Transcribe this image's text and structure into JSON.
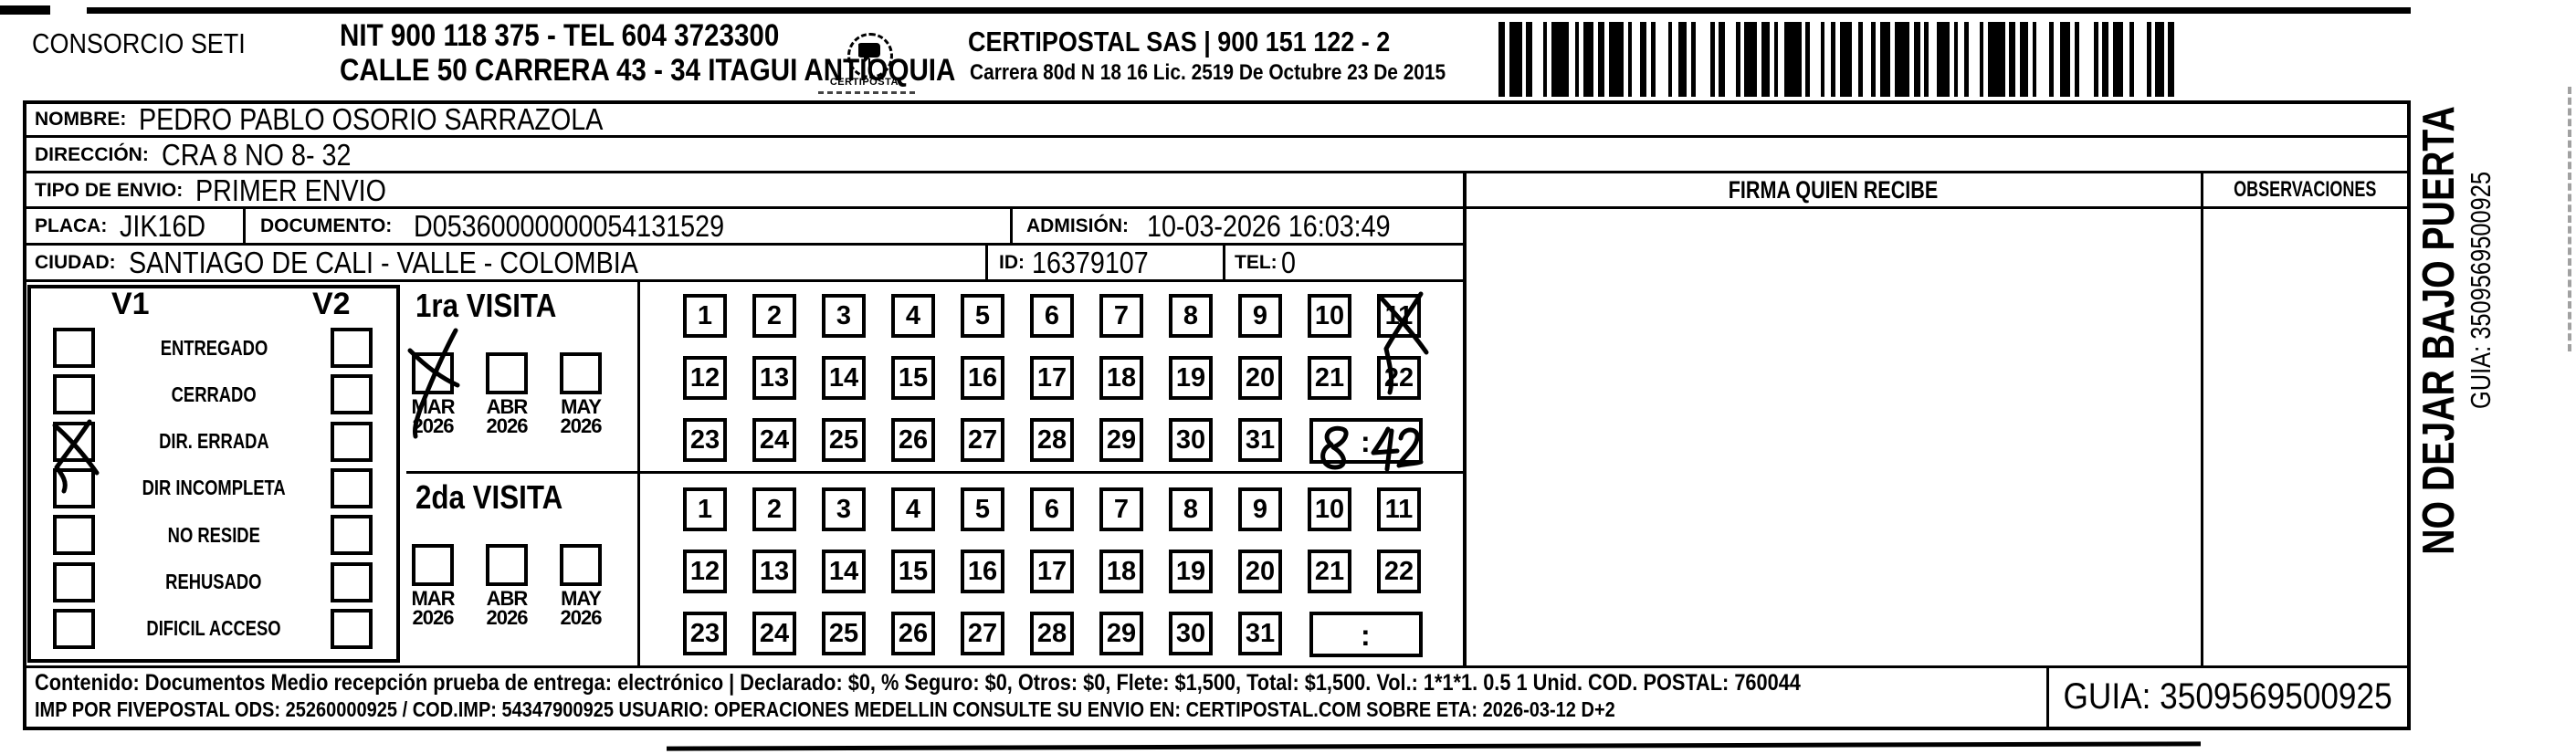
{
  "header": {
    "consorcio": "CONSORCIO SETI",
    "nit_line": "NIT 900 118 375 - TEL 604 3723300",
    "address_line": "CALLE 50 CARRERA 43 - 34 ITAGUI ANTIOQUIA",
    "logo_text": "CERTIPOSTAL",
    "company_line": "CERTIPOSTAL SAS | 900 151 122 - 2",
    "company_address_line": "Carrera 80d N 18 16  Lic. 2519 De Octubre 23 De 2015"
  },
  "recipient": {
    "nombre_label": "NOMBRE:",
    "nombre": "PEDRO PABLO OSORIO SARRAZOLA",
    "direccion_label": "DIRECCIÓN:",
    "direccion": "CRA 8 NO 8- 32",
    "tipo_label": "TIPO DE ENVIO:",
    "tipo": "PRIMER ENVIO",
    "placa_label": "PLACA:",
    "placa": "JIK16D",
    "documento_label": "DOCUMENTO:",
    "documento": "D05360000000054131529",
    "admision_label": "ADMISIÓN:",
    "admision": "10-03-2026 16:03:49",
    "ciudad_label": "CIUDAD:",
    "ciudad": "SANTIAGO DE CALI - VALLE - COLOMBIA",
    "id_label": "ID:",
    "id": "16379107",
    "tel_label": "TEL:",
    "tel": "0"
  },
  "status": {
    "v1_label": "V1",
    "v2_label": "V2",
    "options": [
      "ENTREGADO",
      "CERRADO",
      "DIR. ERRADA",
      "DIR INCOMPLETA",
      "NO RESIDE",
      "REHUSADO",
      "DIFICIL ACCESO"
    ],
    "v1_checked": "DIR. ERRADA"
  },
  "day_rows": [
    [
      1,
      2,
      3,
      4,
      5,
      6,
      7,
      8,
      9,
      10,
      11
    ],
    [
      12,
      13,
      14,
      15,
      16,
      17,
      18,
      19,
      20,
      21,
      22
    ],
    [
      23,
      24,
      25,
      26,
      27,
      28,
      29,
      30,
      31
    ]
  ],
  "visits": {
    "time_separator": ":",
    "first": {
      "title": "1ra VISITA",
      "months": [
        "MAR 2026",
        "ABR 2026",
        "MAY 2026"
      ],
      "month_checked": "MAR 2026",
      "crossed_day": 11,
      "handwritten_time": "8:42"
    },
    "second": {
      "title": "2da VISITA",
      "months": [
        "MAR 2026",
        "ABR 2026",
        "MAY 2026"
      ],
      "month_checked": "",
      "crossed_day": null,
      "handwritten_time": ""
    }
  },
  "columns": {
    "firma": "FIRMA QUIEN RECIBE",
    "observaciones": "OBSERVACIONES"
  },
  "side_note": {
    "line1": "NO DEJAR BAJO PUERTA",
    "line2": "GUIA: 3509569500925"
  },
  "footer": {
    "line1": "Contenido: Documentos Medio recepción prueba de entrega: electrónico | Declarado: $0, % Seguro: $0, Otros: $0, Flete: $1,500, Total: $1,500. Vol.: 1*1*1. 0.5  1 Unid. COD. POSTAL: 760044",
    "line2": "IMP POR FIVEPOSTAL ODS: 25260000925 / COD.IMP: 54347900925 USUARIO: OPERACIONES MEDELLIN CONSULTE SU ENVIO EN: CERTIPOSTAL.COM SOBRE ETA: 2026-03-12 D+2",
    "guia": "GUIA: 3509569500925"
  }
}
